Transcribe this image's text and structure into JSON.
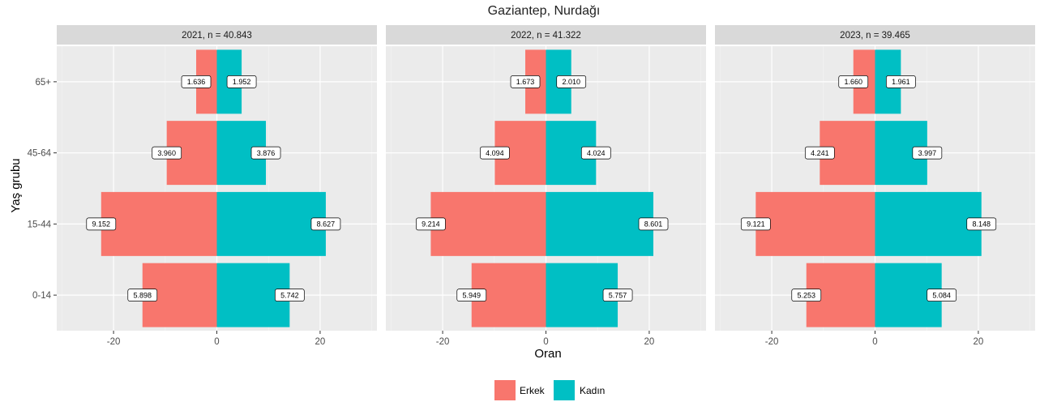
{
  "chart_data": {
    "type": "bar",
    "title": "Gaziantep, Nurdağı",
    "xlabel": "Oran",
    "ylabel": "Yaş grubu",
    "xlim": [
      -31,
      31
    ],
    "x_ticks": [
      -20,
      0,
      20
    ],
    "x_tick_labels": [
      "-20",
      "0",
      "20"
    ],
    "categories": [
      "0-14",
      "15-44",
      "45-64",
      "65+"
    ],
    "legend": {
      "position": "bottom",
      "entries": [
        "Erkek",
        "Kadın"
      ]
    },
    "colors": {
      "Erkek": "#F8766D",
      "Kadın": "#00BFC4"
    },
    "grid": true,
    "panels": [
      {
        "label": "2021, n = 40.843",
        "series": [
          {
            "name": "Erkek",
            "values": [
              -14.4,
              -22.4,
              -9.7,
              -4.0
            ],
            "labels": [
              "5.898",
              "9.152",
              "3.960",
              "1.636"
            ]
          },
          {
            "name": "Kadın",
            "values": [
              14.1,
              21.1,
              9.5,
              4.8
            ],
            "labels": [
              "5.742",
              "8.627",
              "3.876",
              "1.952"
            ]
          }
        ]
      },
      {
        "label": "2022, n = 41.322",
        "series": [
          {
            "name": "Erkek",
            "values": [
              -14.4,
              -22.3,
              -9.9,
              -4.0
            ],
            "labels": [
              "5.949",
              "9.214",
              "4.094",
              "1.673"
            ]
          },
          {
            "name": "Kadın",
            "values": [
              13.9,
              20.8,
              9.7,
              4.9
            ],
            "labels": [
              "5.757",
              "8.601",
              "4.024",
              "2.010"
            ]
          }
        ]
      },
      {
        "label": "2023, n = 39.465",
        "series": [
          {
            "name": "Erkek",
            "values": [
              -13.3,
              -23.1,
              -10.7,
              -4.2
            ],
            "labels": [
              "5.253",
              "9.121",
              "4.241",
              "1.660"
            ]
          },
          {
            "name": "Kadın",
            "values": [
              12.9,
              20.6,
              10.1,
              5.0
            ],
            "labels": [
              "5.084",
              "8.148",
              "3.997",
              "1.961"
            ]
          }
        ]
      }
    ]
  }
}
